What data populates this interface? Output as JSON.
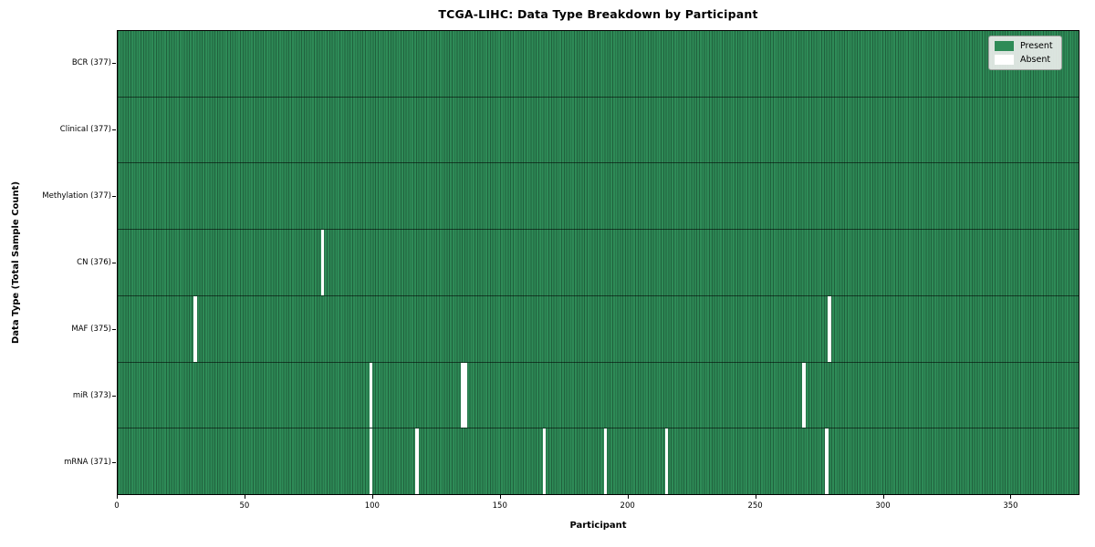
{
  "figure": {
    "title": "TCGA-LIHC: Data Type Breakdown by Participant",
    "xlabel": "Participant",
    "ylabel": "Data Type (Total Sample Count)"
  },
  "legend": {
    "items": [
      {
        "label": "Present",
        "color": "#2e8b57"
      },
      {
        "label": "Absent",
        "color": "#ffffff"
      }
    ]
  },
  "chart_data": {
    "type": "heatmap",
    "title": "TCGA-LIHC: Data Type Breakdown by Participant",
    "xlabel": "Participant",
    "ylabel": "Data Type (Total Sample Count)",
    "n_participants": 377,
    "xlim": [
      0,
      377
    ],
    "x_ticks": [
      0,
      50,
      100,
      150,
      200,
      250,
      300,
      350
    ],
    "grid": false,
    "legend_position": "upper right",
    "legend_entries": [
      "Present",
      "Absent"
    ],
    "colors": {
      "present": "#2e8b57",
      "absent": "#ffffff"
    },
    "rows": [
      {
        "data_type": "BCR",
        "label": "BCR (377)",
        "total": 377,
        "absent_participants": []
      },
      {
        "data_type": "Clinical",
        "label": "Clinical (377)",
        "total": 377,
        "absent_participants": []
      },
      {
        "data_type": "Methylation",
        "label": "Methylation (377)",
        "total": 377,
        "absent_participants": []
      },
      {
        "data_type": "CN",
        "label": "CN (376)",
        "total": 376,
        "absent_participants": [
          80
        ]
      },
      {
        "data_type": "MAF",
        "label": "MAF (375)",
        "total": 375,
        "absent_participants": [
          30,
          279
        ]
      },
      {
        "data_type": "miR",
        "label": "miR (373)",
        "total": 373,
        "absent_participants": [
          99,
          135,
          136,
          269
        ]
      },
      {
        "data_type": "mRNA",
        "label": "mRNA (371)",
        "total": 371,
        "absent_participants": [
          99,
          117,
          167,
          191,
          215,
          278
        ]
      }
    ]
  }
}
